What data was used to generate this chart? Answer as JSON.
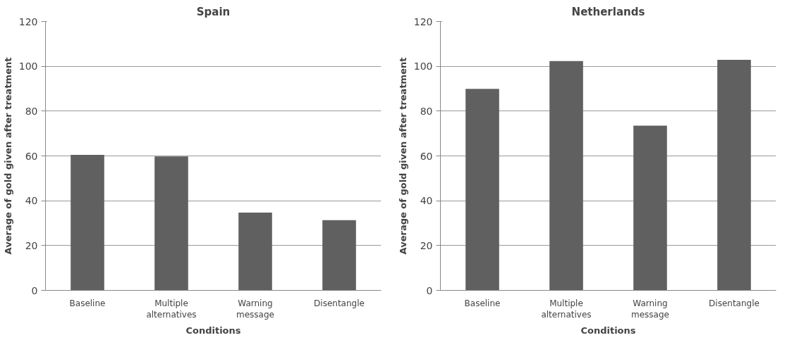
{
  "chart_data": [
    {
      "type": "bar",
      "title": "Spain",
      "xlabel": "Conditions",
      "ylabel": "Average of gold given after treatment",
      "categories": [
        "Baseline",
        "Multiple alternatives",
        "Warning message",
        "Disentangle"
      ],
      "values": [
        60.5,
        59.8,
        34.7,
        31.3
      ],
      "color": "#606060",
      "ylim": [
        0,
        120
      ],
      "yticks": [
        0,
        20,
        40,
        60,
        80,
        100,
        120
      ],
      "grid": "y"
    },
    {
      "type": "bar",
      "title": "Netherlands",
      "xlabel": "Conditions",
      "ylabel": "Average of gold given after treatment",
      "categories": [
        "Baseline",
        "Multiple alternatives",
        "Warning message",
        "Disentangle"
      ],
      "values": [
        89.9,
        102.3,
        73.5,
        102.9
      ],
      "color": "#606060",
      "ylim": [
        0,
        120
      ],
      "yticks": [
        0,
        20,
        40,
        60,
        80,
        100,
        120
      ],
      "grid": "y"
    }
  ]
}
